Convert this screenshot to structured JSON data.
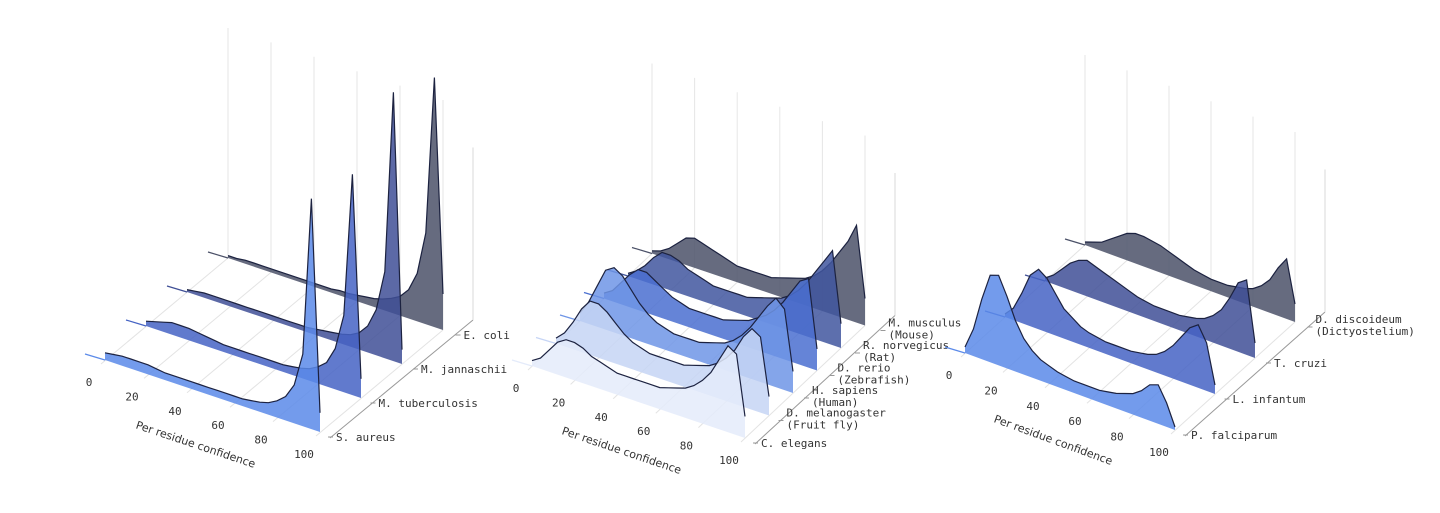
{
  "chart_data": [
    {
      "type": "ridgeline",
      "x_label": "Per residue confidence",
      "xlim": [
        0,
        100
      ],
      "xticks": [
        0,
        20,
        40,
        60,
        80,
        100
      ],
      "x": [
        0,
        4,
        8,
        12,
        16,
        20,
        24,
        28,
        32,
        36,
        40,
        44,
        48,
        52,
        56,
        60,
        64,
        68,
        72,
        76,
        80,
        84,
        88,
        92,
        96,
        100
      ],
      "series": [
        {
          "name": "E. coli",
          "color": "#4b5168",
          "values": [
            0.1,
            0.1,
            0.15,
            0.15,
            0.15,
            0.15,
            0.15,
            0.15,
            0.15,
            0.15,
            0.15,
            0.15,
            0.15,
            0.2,
            0.2,
            0.25,
            0.3,
            0.35,
            0.45,
            0.6,
            0.8,
            1.2,
            2.0,
            3.8,
            10.4,
            1.5
          ]
        },
        {
          "name": "M. jannaschii",
          "color": "#3f4f96",
          "values": [
            0.1,
            0.15,
            0.2,
            0.2,
            0.2,
            0.2,
            0.2,
            0.2,
            0.2,
            0.2,
            0.2,
            0.2,
            0.2,
            0.2,
            0.2,
            0.25,
            0.3,
            0.35,
            0.4,
            0.5,
            0.7,
            1.1,
            1.9,
            3.6,
            11.2,
            0.6
          ]
        },
        {
          "name": "M. tuberculosis",
          "color": "#4563c4",
          "values": [
            0.2,
            0.3,
            0.4,
            0.5,
            0.5,
            0.5,
            0.45,
            0.4,
            0.35,
            0.3,
            0.3,
            0.3,
            0.3,
            0.3,
            0.3,
            0.3,
            0.3,
            0.35,
            0.4,
            0.5,
            0.7,
            1.0,
            1.7,
            3.2,
            9.2,
            0.8
          ]
        },
        {
          "name": "S. aureus",
          "color": "#5b8ae9",
          "values": [
            0.3,
            0.35,
            0.4,
            0.4,
            0.4,
            0.4,
            0.35,
            0.3,
            0.3,
            0.3,
            0.3,
            0.3,
            0.3,
            0.3,
            0.3,
            0.3,
            0.3,
            0.35,
            0.4,
            0.5,
            0.7,
            1.0,
            1.6,
            3.0,
            9.6,
            0.8
          ]
        }
      ]
    },
    {
      "type": "ridgeline",
      "x_label": "Per residue confidence",
      "xlim": [
        0,
        100
      ],
      "xticks": [
        0,
        20,
        40,
        60,
        80,
        100
      ],
      "x": [
        0,
        4,
        8,
        12,
        16,
        20,
        24,
        28,
        32,
        36,
        40,
        44,
        48,
        52,
        56,
        60,
        64,
        68,
        72,
        76,
        80,
        84,
        88,
        92,
        96,
        100
      ],
      "series": [
        {
          "name": "M. musculus",
          "note": "(Mouse)",
          "color": "#4b5168",
          "values": [
            0.1,
            0.2,
            0.4,
            0.7,
            1.0,
            1.1,
            1.0,
            0.9,
            0.8,
            0.7,
            0.6,
            0.6,
            0.6,
            0.6,
            0.6,
            0.7,
            0.8,
            0.9,
            1.0,
            1.2,
            1.5,
            1.9,
            2.4,
            2.9,
            3.6,
            1.0
          ]
        },
        {
          "name": "R. norvegicus",
          "note": "(Rat)",
          "color": "#41569f",
          "values": [
            0.1,
            0.3,
            0.6,
            1.0,
            1.3,
            1.3,
            1.2,
            1.0,
            0.9,
            0.8,
            0.7,
            0.7,
            0.7,
            0.7,
            0.7,
            0.8,
            0.9,
            1.0,
            1.1,
            1.3,
            1.6,
            2.0,
            2.5,
            3.0,
            3.5,
            0.9
          ]
        },
        {
          "name": "D. rerio",
          "note": "(Zebrafish)",
          "color": "#4a6fd0",
          "values": [
            0.2,
            0.4,
            0.8,
            1.2,
            1.5,
            1.5,
            1.3,
            1.1,
            0.9,
            0.8,
            0.7,
            0.7,
            0.7,
            0.7,
            0.7,
            0.8,
            0.9,
            1.0,
            1.2,
            1.4,
            1.7,
            2.1,
            2.6,
            3.1,
            3.3,
            0.8
          ]
        },
        {
          "name": "H. sapiens",
          "note": "(Human)",
          "color": "#6f95e6",
          "values": [
            0.3,
            0.8,
            1.5,
            2.2,
            2.4,
            2.2,
            1.8,
            1.4,
            1.1,
            0.9,
            0.8,
            0.7,
            0.7,
            0.7,
            0.7,
            0.8,
            0.9,
            1.0,
            1.2,
            1.5,
            1.9,
            2.4,
            2.9,
            3.3,
            3.0,
            0.8
          ]
        },
        {
          "name": "D. melanogaster",
          "note": "(Fruit fly)",
          "color": "#c6d5f5",
          "values": [
            0.2,
            0.5,
            1.0,
            1.6,
            2.0,
            2.0,
            1.8,
            1.5,
            1.2,
            1.0,
            0.9,
            0.8,
            0.8,
            0.8,
            0.8,
            0.8,
            0.9,
            1.0,
            1.1,
            1.3,
            1.6,
            2.0,
            2.6,
            3.0,
            2.8,
            0.7
          ]
        },
        {
          "name": "C. elegans",
          "color": "#e4ebfa",
          "values": [
            0.2,
            0.4,
            0.8,
            1.2,
            1.4,
            1.4,
            1.3,
            1.1,
            1.0,
            0.9,
            0.8,
            0.8,
            0.8,
            0.8,
            0.8,
            0.8,
            0.9,
            1.0,
            1.1,
            1.3,
            1.6,
            2.0,
            2.6,
            3.2,
            3.0,
            0.8
          ]
        }
      ]
    },
    {
      "type": "ridgeline",
      "x_label": "Per residue confidence",
      "xlim": [
        0,
        100
      ],
      "xticks": [
        0,
        20,
        40,
        60,
        80,
        100
      ],
      "x": [
        0,
        4,
        8,
        12,
        16,
        20,
        24,
        28,
        32,
        36,
        40,
        44,
        48,
        52,
        56,
        60,
        64,
        68,
        72,
        76,
        80,
        84,
        88,
        92,
        96,
        100
      ],
      "series": [
        {
          "name": "D. discoideum",
          "note": "(Dictyostelium)",
          "color": "#4b5168",
          "values": [
            0.1,
            0.2,
            0.3,
            0.5,
            0.7,
            0.9,
            1.0,
            1.0,
            0.95,
            0.9,
            0.8,
            0.7,
            0.6,
            0.5,
            0.45,
            0.4,
            0.4,
            0.4,
            0.45,
            0.5,
            0.6,
            0.8,
            1.1,
            1.6,
            2.0,
            0.6
          ]
        },
        {
          "name": "T. cruzi",
          "color": "#3f4f96",
          "values": [
            0.1,
            0.3,
            0.6,
            0.9,
            1.1,
            1.2,
            1.1,
            1.0,
            0.9,
            0.8,
            0.7,
            0.6,
            0.55,
            0.5,
            0.5,
            0.5,
            0.5,
            0.55,
            0.6,
            0.7,
            0.9,
            1.2,
            1.7,
            2.3,
            2.5,
            0.5
          ]
        },
        {
          "name": "L. infantum",
          "color": "#4563c4",
          "values": [
            0.1,
            0.4,
            1.0,
            1.7,
            2.0,
            1.8,
            1.4,
            1.0,
            0.8,
            0.6,
            0.5,
            0.45,
            0.4,
            0.4,
            0.4,
            0.4,
            0.45,
            0.5,
            0.6,
            0.8,
            1.1,
            1.5,
            1.9,
            2.1,
            1.6,
            0.3
          ]
        },
        {
          "name": "P. falciparum",
          "color": "#5b8ae9",
          "values": [
            0.2,
            0.9,
            2.0,
            2.9,
            3.0,
            2.4,
            1.7,
            1.2,
            0.9,
            0.7,
            0.6,
            0.5,
            0.45,
            0.4,
            0.4,
            0.4,
            0.4,
            0.45,
            0.5,
            0.6,
            0.7,
            0.9,
            1.2,
            1.3,
            0.8,
            0.1
          ]
        }
      ]
    }
  ]
}
